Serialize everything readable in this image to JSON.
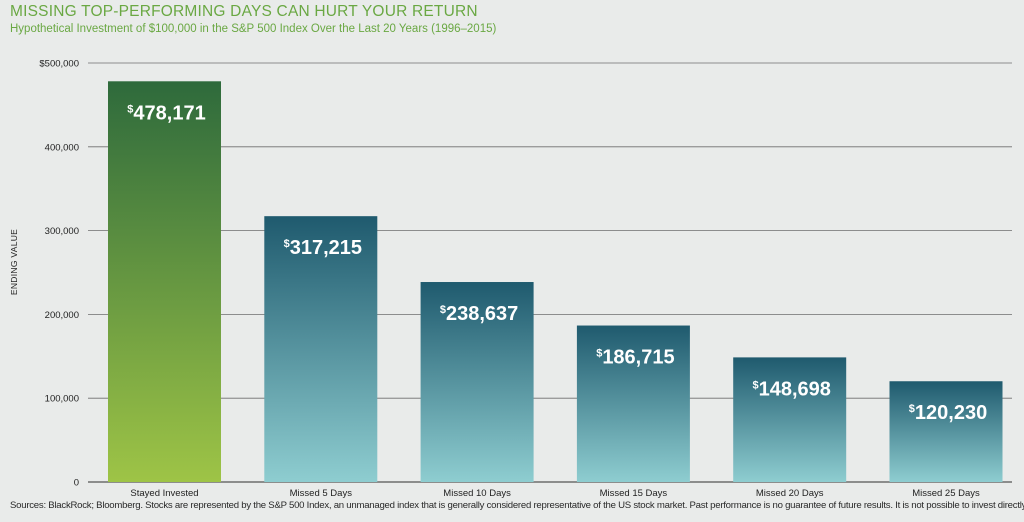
{
  "title": "MISSING TOP-PERFORMING DAYS CAN HURT YOUR RETURN",
  "subtitle": "Hypothetical Investment of $100,000 in the S&P 500 Index Over the Last 20 Years (1996–2015)",
  "source": "Sources: BlackRock; Bloomberg. Stocks are represented by the S&P 500 Index, an unmanaged index that is generally considered representative of the US stock market. Past performance is no guarantee of future results. It is not possible to invest directly in an index.",
  "chart_data": {
    "type": "bar",
    "title": "MISSING TOP-PERFORMING DAYS CAN HURT YOUR RETURN",
    "subtitle": "Hypothetical Investment of $100,000 in the S&P 500 Index Over the Last 20 Years (1996–2015)",
    "xlabel": "",
    "ylabel": "ENDING VALUE",
    "ylim": [
      0,
      500000
    ],
    "yticks": [
      0,
      100000,
      200000,
      300000,
      400000,
      500000
    ],
    "ytick_labels": [
      "0",
      "100,000",
      "200,000",
      "300,000",
      "400,000",
      "$500,000"
    ],
    "grid": true,
    "categories": [
      "Stayed Invested",
      "Missed 5 Days",
      "Missed 10 Days",
      "Missed 15 Days",
      "Missed 20 Days",
      "Missed 25 Days"
    ],
    "values": [
      478171,
      317215,
      238637,
      186715,
      148698,
      120230
    ],
    "value_labels": [
      "478,171",
      "317,215",
      "238,637",
      "186,715",
      "148,698",
      "120,230"
    ],
    "value_prefix": "$",
    "colors": {
      "highlight_top": "#2e6a3c",
      "highlight_bottom": "#9ec446",
      "bar_top": "#1f5a6e",
      "bar_bottom": "#8ecdd0",
      "title": "#6aa843",
      "background": "#e9ebea"
    }
  }
}
